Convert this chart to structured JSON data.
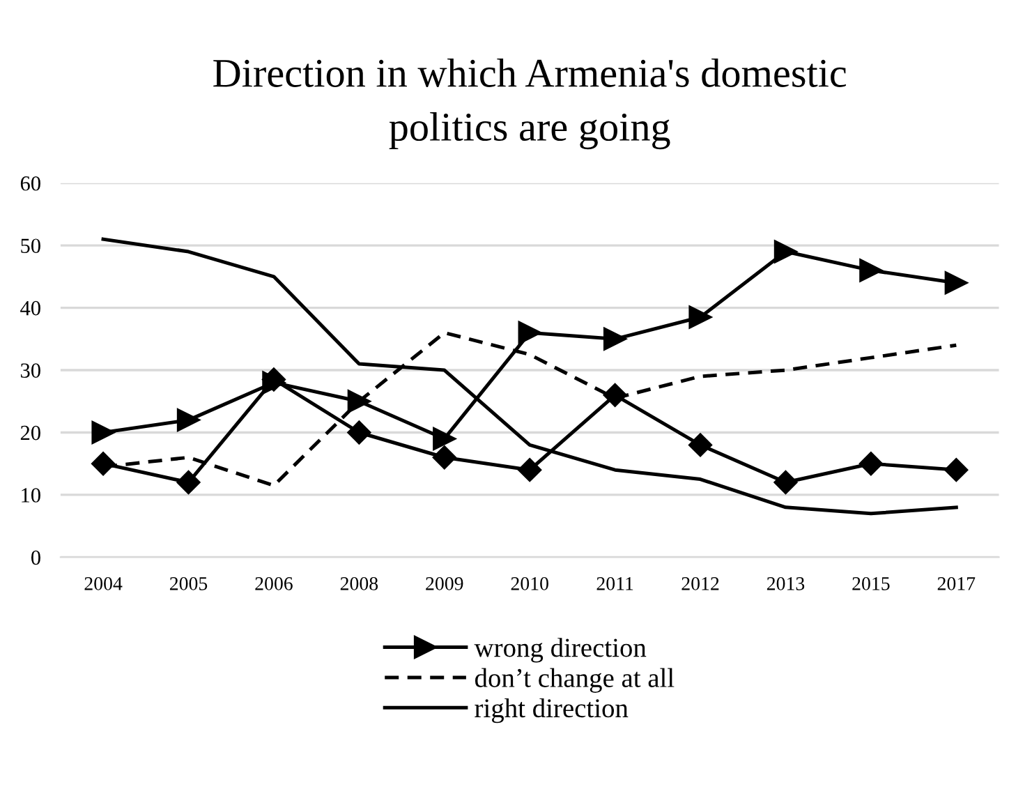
{
  "chart_data": {
    "type": "line",
    "title": "Direction in which Armenia's domestic\npolitics are going",
    "categories": [
      "2004",
      "2005",
      "2006",
      "2008",
      "2009",
      "2010",
      "2011",
      "2012",
      "2013",
      "2015",
      "2017"
    ],
    "series": [
      {
        "name": "wrong direction",
        "color": "#000000",
        "marker": "triangle",
        "line_style": "solid",
        "values": [
          20,
          22,
          28,
          25,
          19,
          36,
          35,
          38.5,
          49,
          46,
          44
        ]
      },
      {
        "name": "don’t change at all",
        "color": "#000000",
        "marker": "none",
        "line_style": "dashed",
        "values": [
          14.5,
          16,
          11.5,
          25,
          36,
          32.5,
          25.5,
          29,
          30,
          32,
          34
        ]
      },
      {
        "name": "right direction",
        "color": "#000000",
        "marker": "none",
        "line_style": "solid",
        "values": [
          51,
          49,
          45,
          31,
          30,
          18,
          14,
          12.5,
          8,
          7,
          8
        ]
      },
      {
        "color": "#000000",
        "marker": "diamond",
        "line_style": "solid",
        "values": [
          15,
          12,
          28.5,
          20,
          16,
          14,
          26,
          18,
          12,
          15,
          14
        ]
      }
    ],
    "ylim": [
      0,
      60
    ],
    "yticks": [
      0,
      10,
      20,
      30,
      40,
      50,
      60
    ],
    "grid": "y",
    "legend": "bottom"
  }
}
